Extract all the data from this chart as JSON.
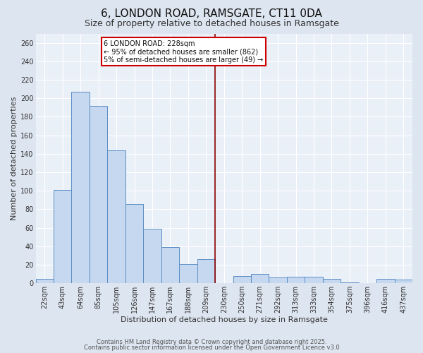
{
  "title": "6, LONDON ROAD, RAMSGATE, CT11 0DA",
  "subtitle": "Size of property relative to detached houses in Ramsgate",
  "xlabel": "Distribution of detached houses by size in Ramsgate",
  "ylabel": "Number of detached properties",
  "categories": [
    "22sqm",
    "43sqm",
    "64sqm",
    "85sqm",
    "105sqm",
    "126sqm",
    "147sqm",
    "167sqm",
    "188sqm",
    "209sqm",
    "230sqm",
    "250sqm",
    "271sqm",
    "292sqm",
    "313sqm",
    "333sqm",
    "354sqm",
    "375sqm",
    "396sqm",
    "416sqm",
    "437sqm"
  ],
  "values": [
    5,
    101,
    207,
    192,
    144,
    86,
    59,
    39,
    21,
    26,
    0,
    8,
    10,
    6,
    7,
    7,
    5,
    1,
    0,
    5,
    4
  ],
  "bar_color": "#c5d8f0",
  "bar_edge_color": "#5b8ec4",
  "background_color": "#dde5f0",
  "plot_bg_color": "#eaf0f8",
  "grid_color": "#ffffff",
  "vline_color": "#8b0000",
  "annotation_title": "6 LONDON ROAD: 228sqm",
  "annotation_line1": "← 95% of detached houses are smaller (862)",
  "annotation_line2": "5% of semi-detached houses are larger (49) →",
  "annotation_box_color": "#ffffff",
  "annotation_border_color": "#cc0000",
  "footer1": "Contains HM Land Registry data © Crown copyright and database right 2025.",
  "footer2": "Contains public sector information licensed under the Open Government Licence v3.0",
  "ylim": [
    0,
    270
  ],
  "title_fontsize": 11,
  "subtitle_fontsize": 9,
  "label_fontsize": 8,
  "tick_fontsize": 7,
  "annotation_fontsize": 7,
  "footer_fontsize": 6
}
